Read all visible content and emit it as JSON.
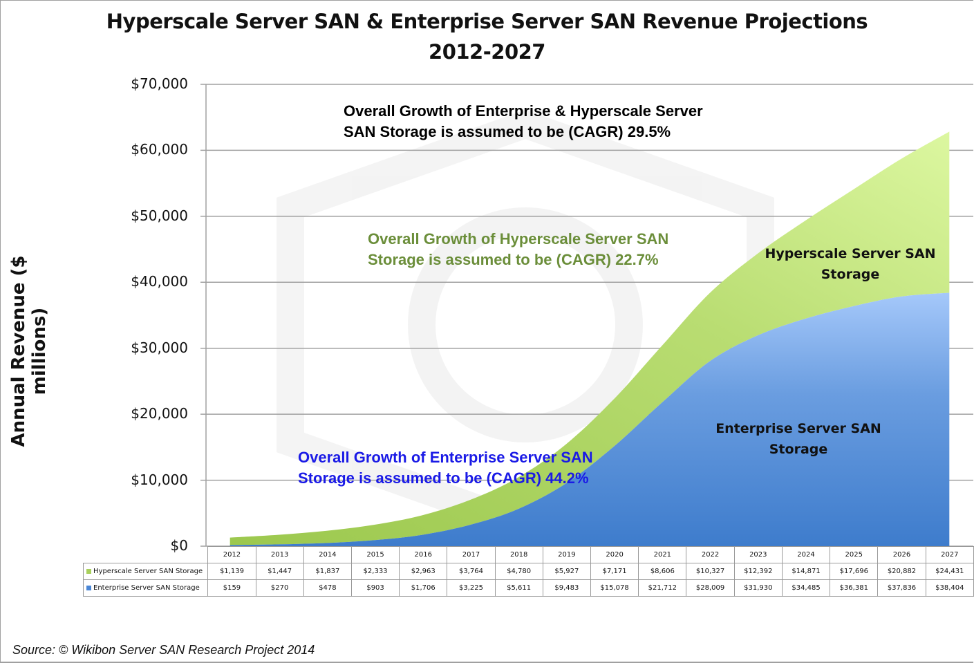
{
  "chart_data": {
    "type": "area",
    "stacked": true,
    "title": "Hyperscale Server SAN & Enterprise Server SAN Revenue Projections",
    "subtitle": "2012-2027",
    "xlabel": "",
    "ylabel": "Annual Revenue ($ millions)",
    "ylim": [
      0,
      70000
    ],
    "yticks": [
      0,
      10000,
      20000,
      30000,
      40000,
      50000,
      60000,
      70000
    ],
    "ytick_labels": [
      "$0",
      "$10,000",
      "$20,000",
      "$30,000",
      "$40,000",
      "$50,000",
      "$60,000",
      "$70,000"
    ],
    "grid": true,
    "legend": "data-table",
    "categories": [
      "2012",
      "2013",
      "2014",
      "2015",
      "2016",
      "2017",
      "2018",
      "2019",
      "2020",
      "2021",
      "2022",
      "2023",
      "2024",
      "2025",
      "2026",
      "2027"
    ],
    "series": [
      {
        "name": "Enterprise Server SAN Storage",
        "color": "#4a86d6",
        "values": [
          159,
          270,
          478,
          903,
          1706,
          3225,
          5611,
          9483,
          15078,
          21712,
          28009,
          31930,
          34485,
          36381,
          37836,
          38404
        ],
        "labels": [
          "$159",
          "$270",
          "$478",
          "$903",
          "$1,706",
          "$3,225",
          "$5,611",
          "$9,483",
          "$15,078",
          "$21,712",
          "$28,009",
          "$31,930",
          "$34,485",
          "$36,381",
          "$37,836",
          "$38,404"
        ]
      },
      {
        "name": "Hyperscale Server SAN Storage",
        "color": "#a8d05c",
        "values": [
          1139,
          1447,
          1837,
          2333,
          2963,
          3764,
          4780,
          5927,
          7171,
          8606,
          10327,
          12392,
          14871,
          17696,
          20882,
          24431
        ],
        "labels": [
          "$1,139",
          "$1,447",
          "$1,837",
          "$2,333",
          "$2,963",
          "$3,764",
          "$4,780",
          "$5,927",
          "$7,171",
          "$8,606",
          "$10,327",
          "$12,392",
          "$14,871",
          "$17,696",
          "$20,882",
          "$24,431"
        ]
      }
    ],
    "annotations": [
      {
        "id": "total",
        "lines": [
          "Overall Growth of Enterprise & Hyperscale Server",
          "SAN Storage is assumed to be (CAGR) 29.5%"
        ],
        "color": "#111111"
      },
      {
        "id": "hyperscale",
        "lines": [
          "Overall Growth of Hyperscale Server SAN",
          "Storage is assumed to be (CAGR) 22.7%"
        ],
        "color": "#6b8e3a"
      },
      {
        "id": "enterprise",
        "lines": [
          "Overall Growth of Enterprise Server SAN",
          "Storage is assumed to be (CAGR) 44.2%"
        ],
        "color": "#1a1ae6"
      }
    ],
    "series_labels": {
      "hyperscale": [
        "Hyperscale Server SAN",
        "Storage"
      ],
      "enterprise": [
        "Enterprise Server SAN",
        "Storage"
      ]
    }
  },
  "source": "Source: © Wikibon Server SAN Research Project 2014"
}
